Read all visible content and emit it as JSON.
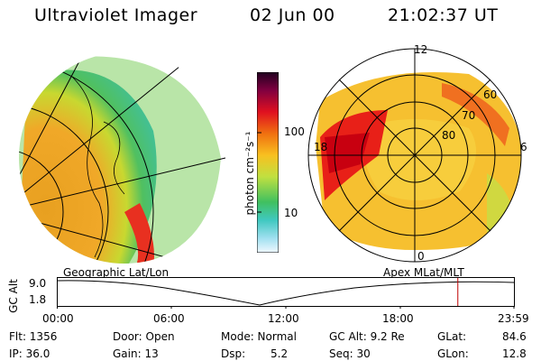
{
  "header": {
    "instrument": "Ultraviolet Imager",
    "date": "02 Jun 00",
    "time": "21:02:37 UT"
  },
  "colorbar": {
    "unit_label": "photon cm⁻²s⁻¹",
    "tick_high": "100",
    "tick_low": "10"
  },
  "left_panel": {
    "caption": "Geographic Lat/Lon"
  },
  "right_panel": {
    "caption": "Apex MLat/MLT",
    "mlt_labels": [
      "12",
      "18",
      "6",
      "0"
    ],
    "mlat_labels": [
      "60",
      "70",
      "80"
    ]
  },
  "altitude_plot": {
    "ylabel": "GC Alt",
    "y_ticks": [
      "9.0",
      "1.8"
    ],
    "x_ticks": [
      "00:00",
      "06:00",
      "12:00",
      "18:00",
      "23:59"
    ],
    "current_time_fraction": 0.877
  },
  "status": {
    "flt": "Flt: 1356",
    "ip": "IP: 36.0",
    "door": "Door: Open",
    "gain": "Gain: 13",
    "mode": "Mode: Normal",
    "dsp": "Dsp:",
    "dsp_val": "5.2",
    "gcalt": "GC Alt: 9.2 Re",
    "seq": "Seq: 30",
    "glat": "GLat:",
    "glat_val": "84.6",
    "glon": "GLon:",
    "glon_val": "12.8"
  },
  "colors": {
    "marker": "#c00000",
    "grid": "#000000"
  }
}
